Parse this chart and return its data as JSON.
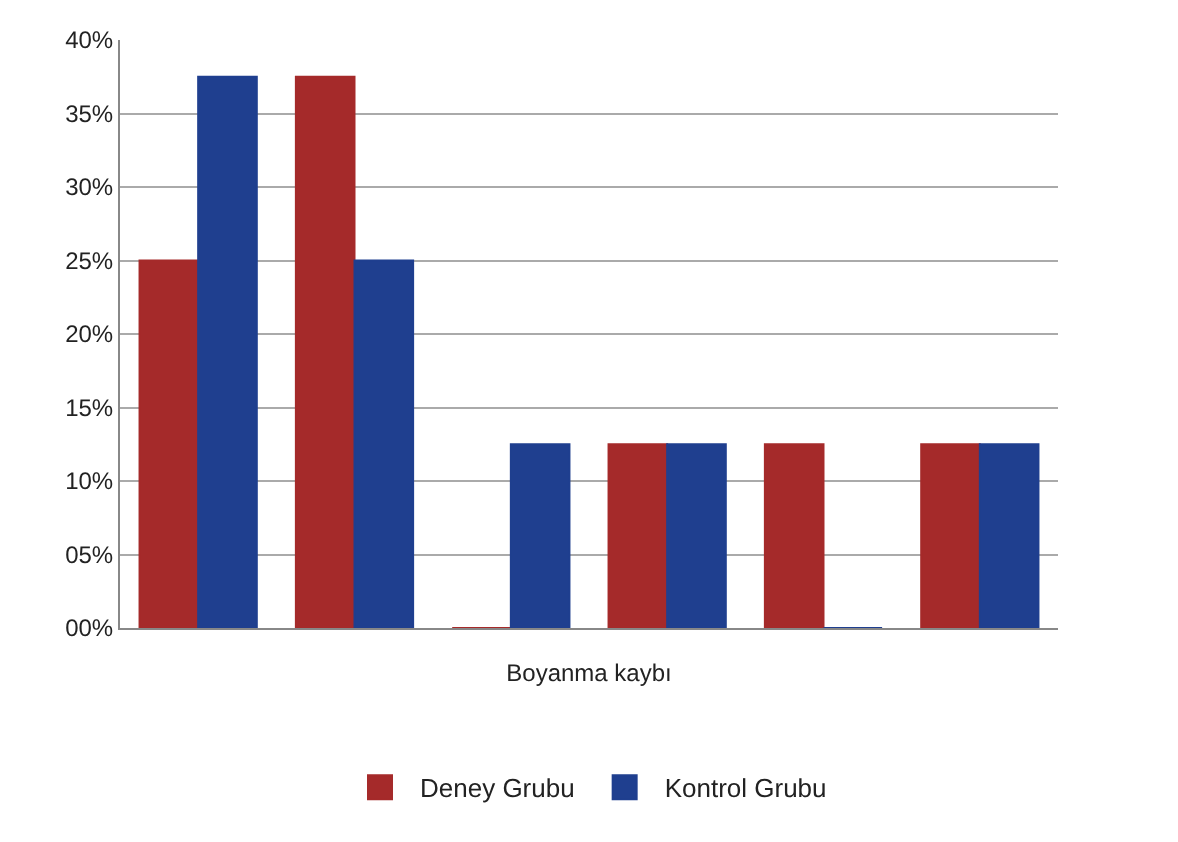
{
  "chart_data": {
    "type": "bar",
    "xlabel": "Boyanma kaybı",
    "categories": [
      null,
      null,
      null,
      null,
      null,
      null
    ],
    "series": [
      {
        "name": "Deney Grubu",
        "color": "#a52a2a",
        "values": [
          25,
          37.5,
          0,
          12.5,
          12.5,
          12.5
        ]
      },
      {
        "name": "Kontrol Grubu",
        "color": "#1f3f8f",
        "values": [
          37.5,
          25,
          12.5,
          12.5,
          0,
          12.5
        ]
      }
    ],
    "ylim": [
      0,
      40
    ],
    "yticks": [
      {
        "value": 0,
        "label": "00%"
      },
      {
        "value": 5,
        "label": "05%"
      },
      {
        "value": 10,
        "label": "10%"
      },
      {
        "value": 15,
        "label": "15%"
      },
      {
        "value": 20,
        "label": "20%"
      },
      {
        "value": 25,
        "label": "25%"
      },
      {
        "value": 30,
        "label": "30%"
      },
      {
        "value": 35,
        "label": "35%"
      },
      {
        "value": 40,
        "label": "40%"
      }
    ],
    "grid": "y",
    "legend": "bottom"
  }
}
